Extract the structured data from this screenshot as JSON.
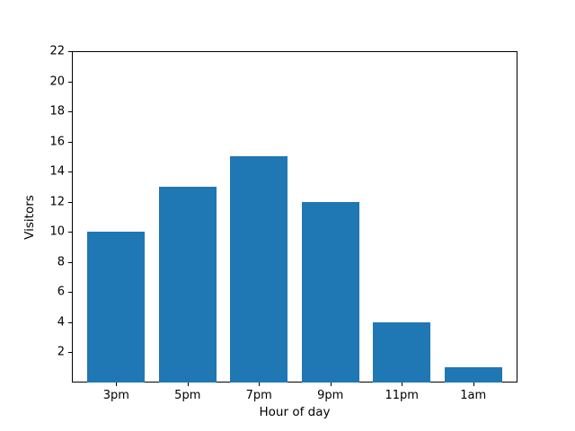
{
  "chart_data": {
    "type": "bar",
    "title": "",
    "categories": [
      "3pm",
      "5pm",
      "7pm",
      "9pm",
      "11pm",
      "1am"
    ],
    "values": [
      10,
      13,
      15,
      12,
      4,
      1
    ],
    "xlabel": "Hour of day",
    "ylabel": "Visitors",
    "ylim": [
      0,
      22
    ],
    "yticks": [
      2,
      4,
      6,
      8,
      10,
      12,
      14,
      16,
      18,
      20,
      22
    ],
    "bar_color": "#1f77b4",
    "spine_color": "#000000",
    "background_color": "#ffffff",
    "grid": false,
    "legend": null
  }
}
